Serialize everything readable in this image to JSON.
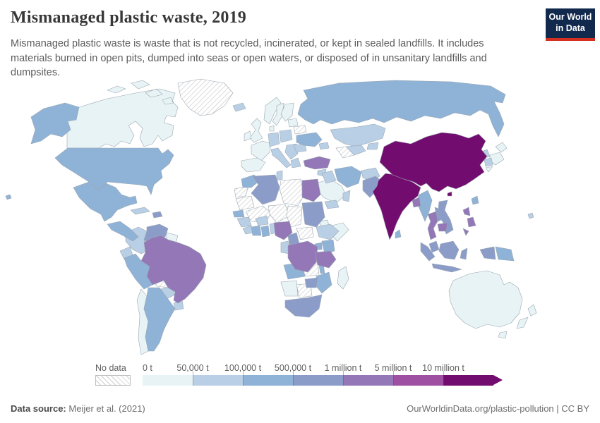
{
  "header": {
    "title": "Mismanaged plastic waste, 2019",
    "subtitle": "Mismanaged plastic waste is waste that is not recycled, incinerated, or kept in sealed landfills. It includes materials burned in open pits, dumped into seas or open waters, or disposed of in unsanitary landfills and dumpsites.",
    "logo": {
      "line1": "Our World",
      "line2": "in Data",
      "bg_color": "#12294e",
      "accent_color": "#d4301f"
    }
  },
  "legend": {
    "no_data_label": "No data",
    "tick_labels": [
      "0 t",
      "50,000 t",
      "100,000 t",
      "500,000 t",
      "1 million t",
      "5 million t",
      "10 million t"
    ],
    "colors": [
      "#e8f3f5",
      "#b9cfe5",
      "#8fb2d7",
      "#8c9cc9",
      "#9377b7",
      "#9e4fa1",
      "#730c6f"
    ],
    "no_data_pattern": "diagonal-hatch"
  },
  "footer": {
    "source_label": "Data source:",
    "source_value": "Meijer et al. (2021)",
    "right_text": "OurWorldinData.org/plastic-pollution | CC BY"
  },
  "chart_data": {
    "type": "heatmap",
    "subtype": "world-choropleth",
    "title": "Mismanaged plastic waste, 2019",
    "unit": "tonnes per year",
    "legend_position": "bottom",
    "buckets": [
      "0–50,000 t",
      "50,000–100,000 t",
      "100,000–500,000 t",
      "500,000 t–1 million t",
      "1–5 million t",
      "5–10 million t",
      ">10 million t"
    ],
    "countries": {
      "Canada": 0,
      "United States": 2,
      "Greenland": "no-data",
      "Mexico": 2,
      "Cuba": 1,
      "Haiti": 3,
      "Guatemala": 2,
      "Panama": 1,
      "Colombia": 1,
      "Venezuela": 3,
      "Guyana": 0,
      "Ecuador": 1,
      "Peru": 2,
      "Brazil": 4,
      "Bolivia": "no-data",
      "Paraguay": 1,
      "Uruguay": 1,
      "Argentina": 2,
      "Chile": 0,
      "Iceland": 1,
      "United Kingdom": 0,
      "Ireland": 0,
      "Norway": 0,
      "Sweden": 0,
      "Finland": 0,
      "Denmark": 0,
      "Lithuania": 0,
      "France": 0,
      "Spain": 0,
      "Germany": 1,
      "Poland": 1,
      "Italy": 1,
      "Serbia": 1,
      "Greece": 1,
      "Romania": 1,
      "Ukraine": 2,
      "Belarus": "no-data",
      "Russia": 2,
      "Kazakhstan": 1,
      "Uzbekistan": 1,
      "Turkmenistan": "no-data",
      "Kyrgyzstan": 1,
      "Azerbaijan": 1,
      "Turkey": 4,
      "Syria": 1,
      "Iraq": 1,
      "Iran": 2,
      "Afghanistan": 1,
      "Saudi Arabia": 0,
      "Yemen": 1,
      "Oman": 1,
      "Pakistan": 3,
      "India": 6,
      "Nepal": 1,
      "Bangladesh": 4,
      "Sri Lanka": 2,
      "Myanmar": 2,
      "Thailand": 4,
      "Laos": 3,
      "Vietnam": 3,
      "Cambodia": 4,
      "China": 6,
      "Mongolia": "no-data",
      "North Korea": 1,
      "South Korea": 1,
      "Japan": 0,
      "Taiwan": 2,
      "Philippines": 4,
      "Malaysia": 3,
      "Indonesia": 3,
      "Papua New Guinea": 2,
      "Australia": 0,
      "New Zealand": 0,
      "Fiji": 1,
      "Morocco": 2,
      "Western Sahara": "no-data",
      "Algeria": 3,
      "Tunisia": 1,
      "Libya": "no-data",
      "Egypt": 4,
      "Mauritania": "no-data",
      "Mali": "no-data",
      "Niger": "no-data",
      "Chad": "no-data",
      "Sudan": 3,
      "Eritrea": 0,
      "Ethiopia": 1,
      "Somalia": 0,
      "Senegal": 2,
      "Guinea": 1,
      "Liberia": 1,
      "Cote d'Ivoire": 2,
      "Ghana": 2,
      "Togo": 1,
      "Burkina Faso": 1,
      "Nigeria": 4,
      "Cameroon": 3,
      "Central African Republic": "no-data",
      "DR Congo": 4,
      "Congo": 1,
      "Uganda": 2,
      "Kenya": 2,
      "Tanzania": 4,
      "Angola": 2,
      "Zambia": "no-data",
      "Malawi": 2,
      "Mozambique": 2,
      "Zimbabwe": 3,
      "Namibia": 0,
      "Botswana": "no-data",
      "South Africa": 3,
      "Madagascar": 0
    }
  }
}
